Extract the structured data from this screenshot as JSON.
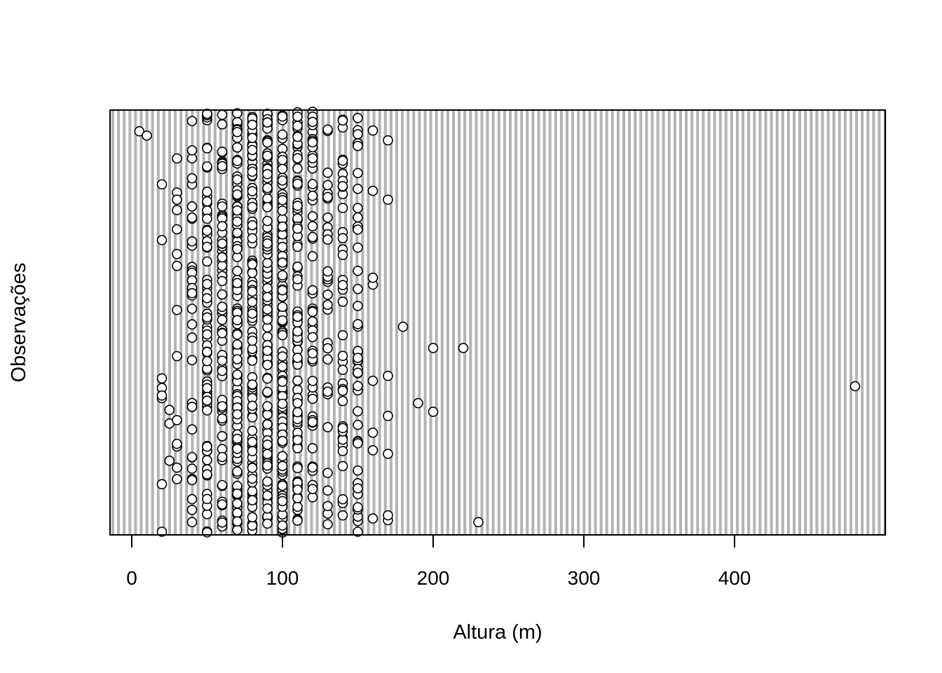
{
  "chart_data": {
    "type": "scatter",
    "title": "",
    "xlabel": "Altura (m)",
    "ylabel": "Observações",
    "xlim": [
      -15,
      500
    ],
    "xticks": [
      0,
      100,
      200,
      300,
      400
    ],
    "xtick_labels": [
      "0",
      "100",
      "200",
      "300",
      "400"
    ],
    "grid": "vertical",
    "legend": "none",
    "colors": {
      "background": "#ffffff",
      "grid": "#b3b3b3",
      "point_fill": "#ffffff",
      "point_stroke": "#000000"
    },
    "notable_points": [
      {
        "x": 480,
        "obs_fraction": 0.35
      },
      {
        "x": 230,
        "obs_fraction": 0.03
      },
      {
        "x": 220,
        "obs_fraction": 0.44
      },
      {
        "x": 200,
        "obs_fraction": 0.44
      },
      {
        "x": 200,
        "obs_fraction": 0.29
      },
      {
        "x": 190,
        "obs_fraction": 0.31
      },
      {
        "x": 180,
        "obs_fraction": 0.49
      },
      {
        "x": 170,
        "obs_fraction": 0.28
      },
      {
        "x": 5,
        "obs_fraction": 0.95
      },
      {
        "x": 10,
        "obs_fraction": 0.94
      }
    ],
    "columns": [
      {
        "x": 20,
        "count": 8
      },
      {
        "x": 25,
        "count": 3
      },
      {
        "x": 30,
        "count": 14
      },
      {
        "x": 40,
        "count": 36
      },
      {
        "x": 50,
        "count": 80
      },
      {
        "x": 60,
        "count": 70
      },
      {
        "x": 70,
        "count": 105
      },
      {
        "x": 80,
        "count": 110
      },
      {
        "x": 90,
        "count": 115
      },
      {
        "x": 100,
        "count": 120
      },
      {
        "x": 110,
        "count": 95
      },
      {
        "x": 120,
        "count": 55
      },
      {
        "x": 130,
        "count": 30
      },
      {
        "x": 140,
        "count": 40
      },
      {
        "x": 150,
        "count": 45
      },
      {
        "x": 160,
        "count": 8
      },
      {
        "x": 170,
        "count": 6
      }
    ]
  }
}
